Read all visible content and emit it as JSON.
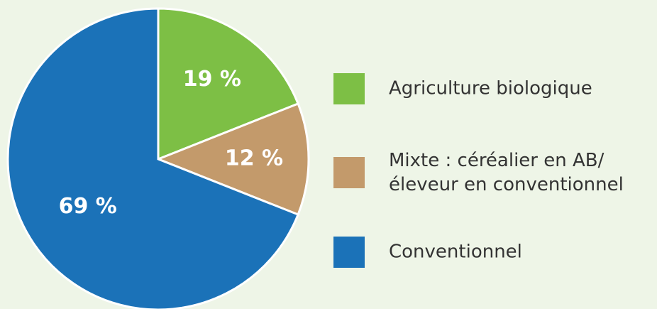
{
  "chart_data": {
    "type": "pie",
    "categories": [
      "Agriculture biologique",
      "Mixte : céréalier en AB/\néleveur en conventionnel",
      "Conventionnel"
    ],
    "values": [
      19,
      12,
      69
    ],
    "value_labels": [
      "19 %",
      "12 %",
      "69 %"
    ],
    "colors": [
      "#7dbf45",
      "#c39a6b",
      "#1b72b8"
    ],
    "legend": "right"
  }
}
